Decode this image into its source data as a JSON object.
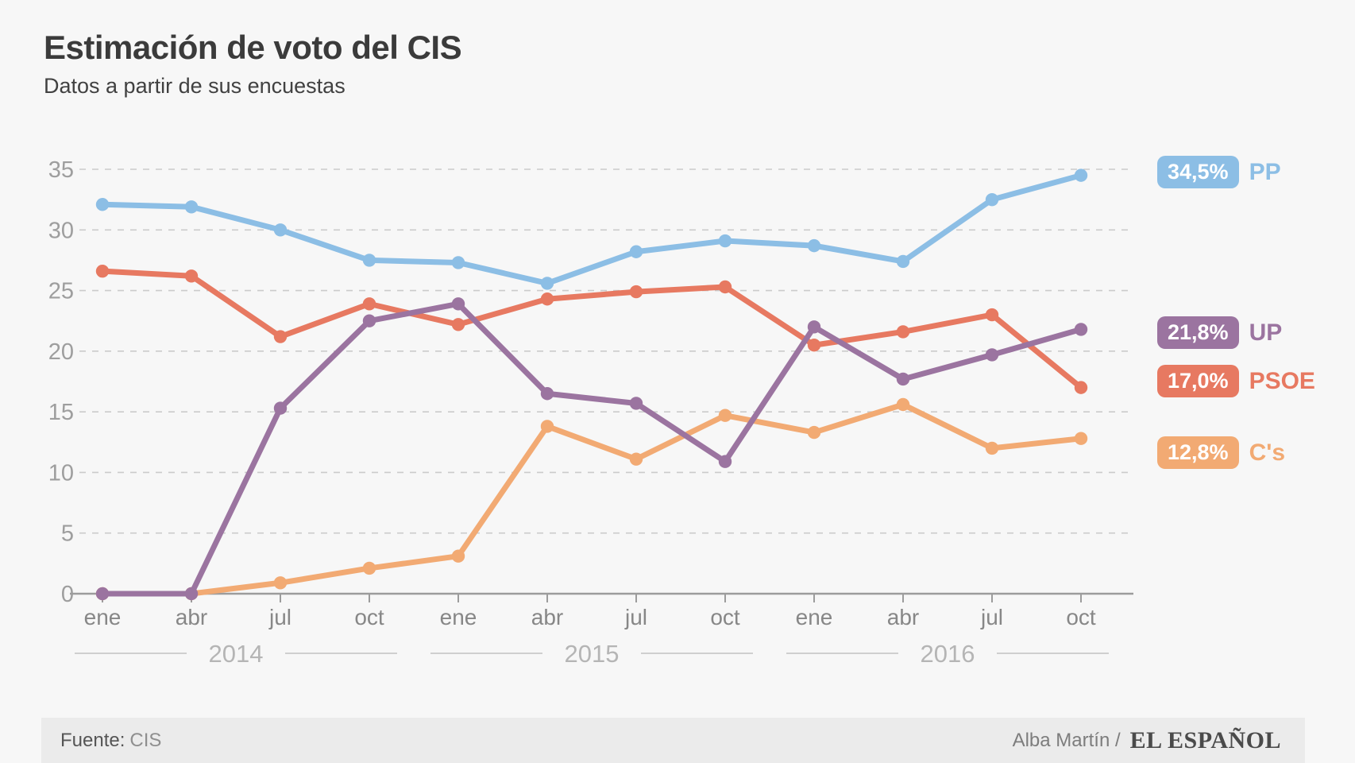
{
  "title": "Estimación de voto del CIS",
  "subtitle": "Datos a partir de sus encuestas",
  "footer": {
    "source_label": "Fuente:",
    "source_value": "CIS",
    "credit": "Alba Martín /",
    "brand": "EL ESPAÑOL"
  },
  "colors": {
    "background": "#F7F7F7",
    "footer_band": "#EBEBEB",
    "title_text": "#3B3B3B",
    "grid": "#CBCBCB",
    "axis": "#9C9C9C",
    "y_tick_text": "#9E9E9E",
    "month_text": "#878787",
    "year_text": "#B5B5B5",
    "badge_text": "#FFFFFF"
  },
  "chart_data": {
    "type": "line",
    "title": "Estimación de voto del CIS",
    "subtitle": "Datos a partir de sus encuestas",
    "ylabel": "",
    "xlabel": "",
    "ylim": [
      0,
      35
    ],
    "yticks": [
      0,
      5,
      10,
      15,
      20,
      25,
      30,
      35
    ],
    "grid": "horizontal-dashed",
    "legend_position": "right-of-line-ends",
    "categories": [
      "ene",
      "abr",
      "jul",
      "oct",
      "ene",
      "abr",
      "jul",
      "oct",
      "ene",
      "abr",
      "jul",
      "oct"
    ],
    "year_groups": [
      {
        "label": "2014",
        "from": 0,
        "to": 3
      },
      {
        "label": "2015",
        "from": 4,
        "to": 7
      },
      {
        "label": "2016",
        "from": 8,
        "to": 11
      }
    ],
    "series": [
      {
        "name": "PP",
        "end_label": "34,5%",
        "color": "#8CBEE5",
        "values": [
          32.1,
          31.9,
          30.0,
          27.5,
          27.3,
          25.6,
          28.2,
          29.1,
          28.7,
          27.4,
          32.5,
          34.5
        ]
      },
      {
        "name": "UP",
        "end_label": "21,8%",
        "color": "#9B74A0",
        "values": [
          0,
          0,
          15.3,
          22.5,
          23.9,
          16.5,
          15.7,
          10.9,
          22.0,
          17.7,
          19.7,
          21.8
        ]
      },
      {
        "name": "PSOE",
        "end_label": "17,0%",
        "color": "#E77961",
        "values": [
          26.6,
          26.2,
          21.2,
          23.9,
          22.2,
          24.3,
          24.9,
          25.3,
          20.5,
          21.6,
          23.0,
          17.0
        ]
      },
      {
        "name": "C's",
        "end_label": "12,8%",
        "color": "#F2AA73",
        "values": [
          0,
          0,
          0.9,
          2.1,
          3.1,
          13.8,
          11.1,
          14.7,
          13.3,
          15.6,
          12.0,
          12.8
        ]
      }
    ]
  }
}
